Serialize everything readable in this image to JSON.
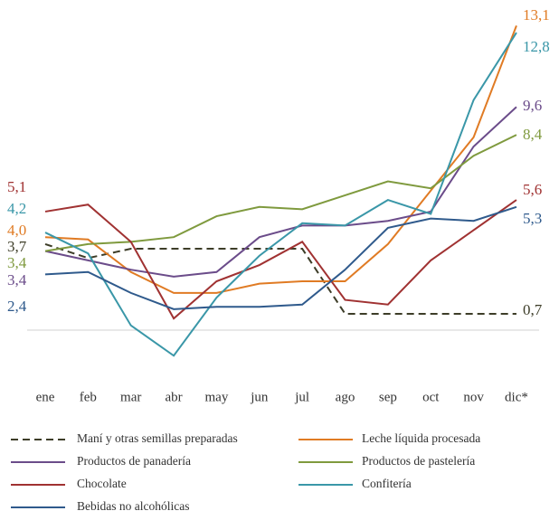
{
  "chart_data": {
    "type": "line",
    "categories": [
      "ene",
      "feb",
      "mar",
      "abr",
      "may",
      "jun",
      "jul",
      "ago",
      "sep",
      "oct",
      "nov",
      "dic*"
    ],
    "ylim": [
      -2,
      14
    ],
    "series": [
      {
        "name": "Maní y otras semillas preparadas",
        "color": "#3d3d28",
        "dashed": true,
        "values": [
          3.7,
          3.1,
          3.5,
          3.5,
          3.5,
          3.5,
          3.5,
          0.7,
          0.7,
          0.7,
          0.7,
          0.7
        ],
        "value_labels": [
          "3,7",
          null,
          null,
          null,
          null,
          null,
          null,
          null,
          null,
          null,
          null,
          "0,7"
        ]
      },
      {
        "name": "Leche líquida procesada",
        "color": "#e07b24",
        "values": [
          4.0,
          3.9,
          2.5,
          1.6,
          1.6,
          2.0,
          2.1,
          2.1,
          3.7,
          6.0,
          8.3,
          13.1
        ],
        "value_labels": [
          "4,0",
          null,
          null,
          null,
          null,
          null,
          null,
          null,
          null,
          null,
          null,
          "13,1"
        ]
      },
      {
        "name": "Productos de panadería",
        "color": "#6b4c8a",
        "values": [
          3.4,
          3.0,
          2.6,
          2.3,
          2.5,
          4.0,
          4.5,
          4.5,
          4.7,
          5.1,
          7.9,
          9.6
        ],
        "value_labels": [
          "3,4",
          null,
          null,
          null,
          null,
          null,
          null,
          null,
          null,
          null,
          null,
          "9,6"
        ]
      },
      {
        "name": "Productos de pastelería",
        "color": "#7f9a3e",
        "values": [
          3.4,
          3.7,
          3.8,
          4.0,
          4.9,
          5.3,
          5.2,
          5.8,
          6.4,
          6.1,
          7.5,
          8.4
        ],
        "value_labels": [
          "3,4",
          null,
          null,
          null,
          null,
          null,
          null,
          null,
          null,
          null,
          null,
          "8,4"
        ]
      },
      {
        "name": "Chocolate",
        "color": "#a03232",
        "values": [
          5.1,
          5.4,
          3.8,
          0.5,
          2.1,
          2.8,
          3.8,
          1.3,
          1.1,
          3.0,
          4.3,
          5.6
        ],
        "value_labels": [
          "5,1",
          null,
          null,
          null,
          null,
          null,
          null,
          null,
          null,
          null,
          null,
          "5,6"
        ]
      },
      {
        "name": "Confitería",
        "color": "#3a97a8",
        "values": [
          4.2,
          3.3,
          0.2,
          -1.1,
          1.4,
          3.2,
          4.6,
          4.5,
          5.6,
          5.0,
          9.9,
          12.8
        ],
        "value_labels": [
          "4,2",
          null,
          null,
          null,
          null,
          null,
          null,
          null,
          null,
          null,
          null,
          "12,8"
        ]
      },
      {
        "name": "Bebidas no alcohólicas",
        "color": "#2f5a8c",
        "values": [
          2.4,
          2.5,
          1.6,
          0.9,
          1.0,
          1.0,
          1.1,
          2.6,
          4.4,
          4.8,
          4.7,
          5.3
        ],
        "value_labels": [
          "2,4",
          null,
          null,
          null,
          null,
          null,
          null,
          null,
          null,
          null,
          null,
          "5,3"
        ]
      }
    ]
  }
}
